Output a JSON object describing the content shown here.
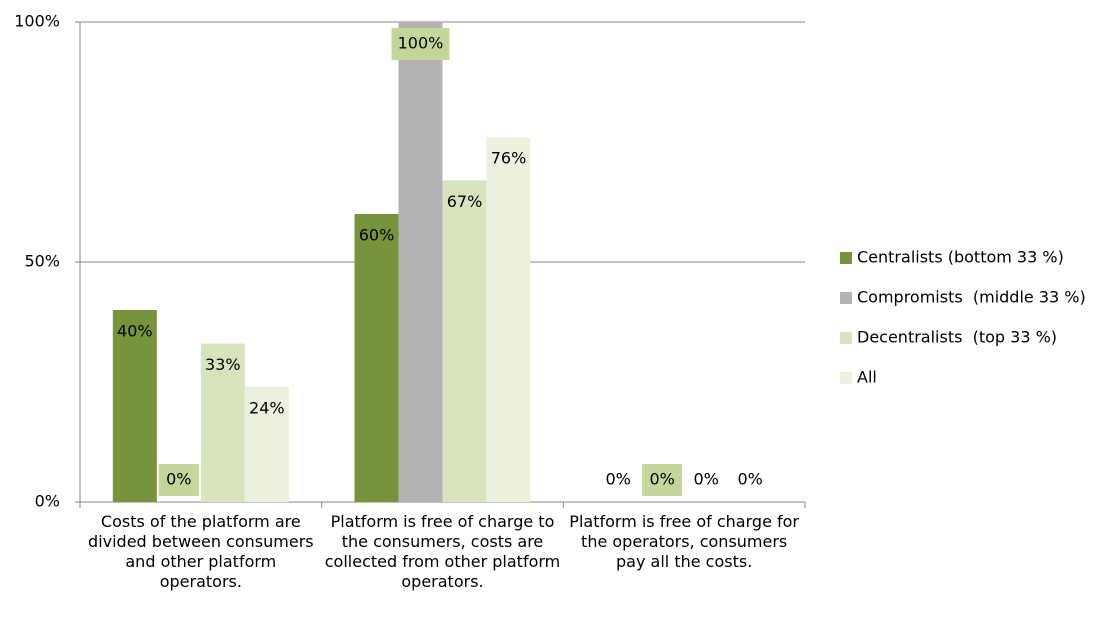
{
  "chart_data": {
    "type": "bar",
    "categories": [
      "Costs of the platform are divided between consumers and other platform operators.",
      "Platform is free of charge to the consumers, costs are collected from other platform operators.",
      "Platform is free of charge for the operators, consumers pay all the costs."
    ],
    "series": [
      {
        "name": "Centralists (bottom 33 %)",
        "color": "#77933c",
        "values": [
          40,
          60,
          0
        ],
        "value_labels": [
          "40%",
          "60%",
          "0%"
        ]
      },
      {
        "name": "Compromists  (middle 33 %)",
        "color": "#b3b3b3",
        "values": [
          0,
          100,
          0
        ],
        "value_labels": [
          "0%",
          "100%",
          "0%"
        ],
        "label_box": "#c4d79b"
      },
      {
        "name": "Decentralists  (top 33 %)",
        "color": "#d7e4bd",
        "values": [
          33,
          67,
          0
        ],
        "value_labels": [
          "33%",
          "67%",
          "0%"
        ]
      },
      {
        "name": "All",
        "color": "#ebf1de",
        "values": [
          24,
          76,
          0
        ],
        "value_labels": [
          "24%",
          "76%",
          "0%"
        ]
      }
    ],
    "ylim": [
      0,
      100
    ],
    "yticks": [
      {
        "value": 0,
        "label": "0%"
      },
      {
        "value": 50,
        "label": "50%"
      },
      {
        "value": 100,
        "label": "100%"
      }
    ],
    "grid": true,
    "legend": "right"
  }
}
